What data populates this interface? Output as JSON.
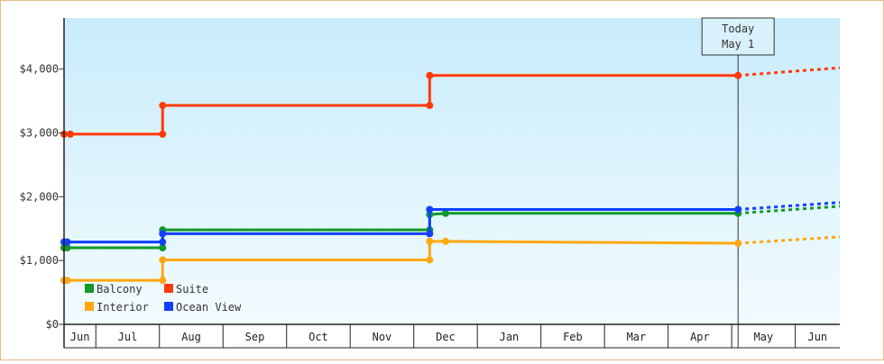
{
  "chart_data": {
    "type": "line",
    "title": "",
    "xlabel": "",
    "ylabel": "",
    "ylim": [
      0,
      4800
    ],
    "y_ticks": [
      {
        "value": 0,
        "label": "$0"
      },
      {
        "value": 1000,
        "label": "$1,000"
      },
      {
        "value": 2000,
        "label": "$2,000"
      },
      {
        "value": 3000,
        "label": "$3,000"
      },
      {
        "value": 4000,
        "label": "$4,000"
      }
    ],
    "x_months": [
      "Jun",
      "Jul",
      "Aug",
      "Sep",
      "Oct",
      "Nov",
      "Dec",
      "Jan",
      "Feb",
      "Mar",
      "Apr",
      "May",
      "Jun"
    ],
    "x_range": [
      0,
      12.2
    ],
    "today": {
      "x": 10.6,
      "line1": "Today",
      "line2": "May 1"
    },
    "legend_position": "bottom-left",
    "series": [
      {
        "name": "Balcony",
        "color": "#11992a",
        "points": [
          [
            0.0,
            1200
          ],
          [
            0.05,
            1200
          ],
          [
            1.55,
            1200
          ],
          [
            1.55,
            1480
          ],
          [
            5.75,
            1480
          ],
          [
            5.75,
            1720
          ],
          [
            6.0,
            1740
          ],
          [
            10.6,
            1740
          ]
        ],
        "forecast": [
          [
            10.6,
            1740
          ],
          [
            12.2,
            1850
          ]
        ]
      },
      {
        "name": "Suite",
        "color": "#ff3a0a",
        "points": [
          [
            0.0,
            2980
          ],
          [
            0.1,
            2980
          ],
          [
            1.55,
            2980
          ],
          [
            1.55,
            3430
          ],
          [
            5.75,
            3430
          ],
          [
            5.75,
            3900
          ],
          [
            10.6,
            3900
          ]
        ],
        "forecast": [
          [
            10.6,
            3900
          ],
          [
            12.2,
            4020
          ]
        ]
      },
      {
        "name": "Interior",
        "color": "#ffa711",
        "points": [
          [
            0.0,
            690
          ],
          [
            0.05,
            690
          ],
          [
            1.55,
            690
          ],
          [
            1.55,
            1010
          ],
          [
            5.75,
            1010
          ],
          [
            5.75,
            1300
          ],
          [
            6.0,
            1300
          ],
          [
            10.6,
            1270
          ]
        ],
        "forecast": [
          [
            10.6,
            1270
          ],
          [
            12.2,
            1370
          ]
        ]
      },
      {
        "name": "Ocean View",
        "color": "#1140ff",
        "points": [
          [
            0.0,
            1290
          ],
          [
            0.05,
            1290
          ],
          [
            1.55,
            1290
          ],
          [
            1.55,
            1420
          ],
          [
            5.75,
            1420
          ],
          [
            5.75,
            1800
          ],
          [
            10.6,
            1800
          ]
        ],
        "forecast": [
          [
            10.6,
            1800
          ],
          [
            12.2,
            1910
          ]
        ]
      }
    ]
  }
}
